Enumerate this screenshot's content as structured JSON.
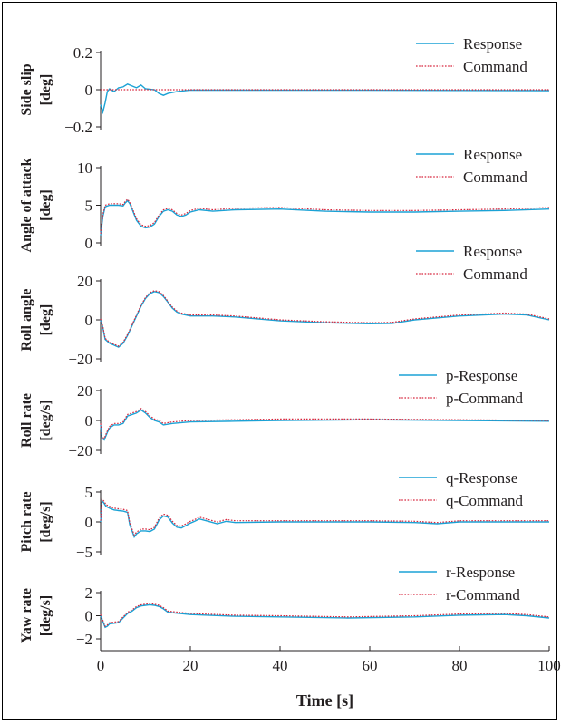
{
  "colors": {
    "response": "#1ba2d5",
    "command": "#d7263d",
    "axis": "#231f20"
  },
  "chart_data": [
    {
      "type": "line",
      "ylabel": [
        "Side slip",
        "[deg]"
      ],
      "ylim": [
        -0.2,
        0.2
      ],
      "yticks": [
        0.2,
        0,
        -0.2
      ],
      "yticklabels": [
        "0.2",
        "0",
        "−0.2"
      ],
      "legend": [
        "Response",
        "Command"
      ],
      "series": [
        {
          "name": "Response",
          "x": [
            0,
            0.5,
            1,
            1.5,
            2,
            3,
            4,
            5,
            6,
            7,
            8,
            9,
            10,
            12,
            13,
            14,
            15,
            17,
            20,
            40,
            60,
            80,
            100
          ],
          "y": [
            -0.08,
            -0.12,
            -0.07,
            -0.01,
            0.005,
            -0.01,
            0.01,
            0.015,
            0.03,
            0.02,
            0.01,
            0.025,
            0.005,
            0.0,
            -0.02,
            -0.03,
            -0.02,
            -0.01,
            -0.002,
            -0.003,
            -0.003,
            -0.004,
            -0.005
          ]
        },
        {
          "name": "Command",
          "x": [
            0,
            100
          ],
          "y": [
            0,
            0
          ]
        }
      ]
    },
    {
      "type": "line",
      "ylabel": [
        "Angle of attack",
        "[deg]"
      ],
      "ylim": [
        0,
        10
      ],
      "yticks": [
        10,
        5,
        0
      ],
      "yticklabels": [
        "10",
        "5",
        "0"
      ],
      "legend": [
        "Response",
        "Command"
      ],
      "series": [
        {
          "name": "Response",
          "x": [
            0,
            0.5,
            1,
            2,
            3,
            4,
            5,
            5.5,
            6,
            6.5,
            7,
            8,
            9,
            10,
            11,
            12,
            13,
            14,
            15,
            16,
            17,
            18,
            19,
            20,
            22,
            25,
            30,
            40,
            50,
            60,
            70,
            80,
            90,
            100
          ],
          "y": [
            1.0,
            3.5,
            4.8,
            5.0,
            5.0,
            5.0,
            4.9,
            5.3,
            5.6,
            5.2,
            4.5,
            3.0,
            2.2,
            2.0,
            2.1,
            2.5,
            3.5,
            4.2,
            4.4,
            4.2,
            3.7,
            3.5,
            3.7,
            4.1,
            4.4,
            4.2,
            4.4,
            4.5,
            4.2,
            4.1,
            4.1,
            4.2,
            4.3,
            4.5
          ]
        },
        {
          "name": "Command",
          "x": [
            0,
            0.5,
            1,
            2,
            3,
            4,
            5,
            5.5,
            6,
            6.5,
            7,
            8,
            9,
            10,
            11,
            12,
            13,
            14,
            15,
            16,
            17,
            18,
            19,
            20,
            22,
            25,
            30,
            40,
            50,
            60,
            70,
            80,
            90,
            100
          ],
          "y": [
            1.2,
            3.8,
            5.0,
            5.2,
            5.2,
            5.2,
            5.1,
            5.5,
            5.8,
            5.4,
            4.7,
            3.2,
            2.4,
            2.2,
            2.3,
            2.7,
            3.7,
            4.4,
            4.6,
            4.4,
            3.9,
            3.7,
            3.9,
            4.3,
            4.6,
            4.4,
            4.6,
            4.7,
            4.4,
            4.3,
            4.3,
            4.4,
            4.5,
            4.7
          ]
        }
      ]
    },
    {
      "type": "line",
      "ylabel": [
        "Roll angle",
        "[deg]"
      ],
      "ylim": [
        -20,
        20
      ],
      "yticks": [
        20,
        0,
        -20
      ],
      "yticklabels": [
        "20",
        "0",
        "−20"
      ],
      "legend": [
        "Response",
        "Command"
      ],
      "series": [
        {
          "name": "Response",
          "x": [
            0,
            0.5,
            1,
            2,
            3,
            4,
            5,
            6,
            7,
            8,
            9,
            10,
            11,
            12,
            13,
            14,
            15,
            16,
            17,
            18,
            20,
            25,
            30,
            40,
            50,
            60,
            65,
            70,
            80,
            90,
            95,
            100
          ],
          "y": [
            0,
            -4,
            -10,
            -12,
            -13,
            -14,
            -12,
            -8,
            -3,
            2,
            7,
            11,
            13.5,
            14.5,
            14,
            12,
            9,
            6,
            4,
            3,
            2,
            2,
            1.5,
            -0.5,
            -1.5,
            -2,
            -1.8,
            0,
            2,
            3,
            2.5,
            0
          ]
        },
        {
          "name": "Command",
          "x": [
            0,
            0.5,
            1,
            2,
            3,
            4,
            5,
            6,
            7,
            8,
            9,
            10,
            11,
            12,
            13,
            14,
            15,
            16,
            17,
            18,
            20,
            25,
            30,
            40,
            50,
            60,
            65,
            70,
            80,
            90,
            95,
            100
          ],
          "y": [
            0.5,
            -3.5,
            -9.5,
            -11.5,
            -12.5,
            -13.5,
            -11.5,
            -7.5,
            -2.5,
            2.5,
            7.5,
            11.5,
            14,
            15,
            14.5,
            12.5,
            9.5,
            6.5,
            4.5,
            3.5,
            2.5,
            2.5,
            2,
            0,
            -1,
            -1.5,
            -1.3,
            0.5,
            2.5,
            3.5,
            3,
            0.5
          ]
        }
      ]
    },
    {
      "type": "line",
      "ylabel": [
        "Roll rate",
        "[deg/s]"
      ],
      "ylim": [
        -20,
        20
      ],
      "yticks": [
        20,
        0,
        -20
      ],
      "yticklabels": [
        "20",
        "0",
        "−20"
      ],
      "legend": [
        "p-Response",
        "p-Command"
      ],
      "legend_prefix": "p",
      "series": [
        {
          "name": "p-Response",
          "x": [
            0,
            0.3,
            0.8,
            1.5,
            2,
            2.5,
            3,
            4,
            5,
            6,
            7,
            8,
            9,
            10,
            11,
            12,
            13,
            14,
            16,
            20,
            30,
            40,
            60,
            80,
            100
          ],
          "y": [
            -3,
            -12,
            -13,
            -8,
            -5,
            -4,
            -3,
            -3,
            -2,
            3,
            4,
            5,
            7,
            5,
            2,
            0,
            -1,
            -3,
            -2,
            -1,
            -0.5,
            0,
            0.5,
            0,
            -0.5
          ]
        },
        {
          "name": "p-Command",
          "x": [
            0,
            0.3,
            0.8,
            1.5,
            2,
            2.5,
            3,
            4,
            5,
            6,
            7,
            8,
            9,
            10,
            11,
            12,
            13,
            14,
            16,
            20,
            30,
            40,
            60,
            80,
            100
          ],
          "y": [
            -2,
            -11,
            -12,
            -7,
            -4,
            -3,
            -2,
            -2,
            -1,
            4,
            5,
            6,
            8,
            6,
            3,
            1,
            0,
            -2,
            -1,
            0,
            0.5,
            1,
            1,
            0.5,
            0
          ]
        }
      ]
    },
    {
      "type": "line",
      "ylabel": [
        "Pitch rate",
        "[deg/s]"
      ],
      "ylim": [
        -5,
        5
      ],
      "yticks": [
        5,
        0,
        -5
      ],
      "yticklabels": [
        "5",
        "0",
        "−5"
      ],
      "legend": [
        "q-Response",
        "q-Command"
      ],
      "legend_prefix": "q",
      "series": [
        {
          "name": "q-Response",
          "x": [
            0,
            0.3,
            0.7,
            1.2,
            2,
            3,
            4,
            5,
            6,
            6.5,
            7,
            7.5,
            8,
            9,
            10,
            11,
            12,
            13,
            14,
            15,
            16,
            17,
            18,
            19,
            20,
            21,
            22,
            24,
            26,
            28,
            30,
            40,
            50,
            60,
            70,
            75,
            80,
            90,
            100
          ],
          "y": [
            0,
            3.5,
            3.2,
            2.6,
            2.3,
            2.0,
            1.9,
            1.8,
            1.6,
            -0.5,
            -1.5,
            -2.5,
            -2.0,
            -1.5,
            -1.5,
            -1.6,
            -1.2,
            0.3,
            1.0,
            0.8,
            -0.2,
            -0.9,
            -1.0,
            -0.6,
            -0.2,
            0.1,
            0.5,
            0.1,
            -0.3,
            0.1,
            -0.1,
            0,
            0,
            0,
            -0.1,
            -0.3,
            0,
            0,
            0
          ]
        },
        {
          "name": "q-Command",
          "x": [
            0,
            0.3,
            0.7,
            1.2,
            2,
            3,
            4,
            5,
            6,
            6.5,
            7,
            7.5,
            8,
            9,
            10,
            11,
            12,
            13,
            14,
            15,
            16,
            17,
            18,
            19,
            20,
            21,
            22,
            24,
            26,
            28,
            30,
            40,
            50,
            60,
            70,
            75,
            80,
            90,
            100
          ],
          "y": [
            0.2,
            3.8,
            3.5,
            2.9,
            2.6,
            2.3,
            2.2,
            2.1,
            1.9,
            -0.2,
            -1.2,
            -2.2,
            -1.7,
            -1.2,
            -1.2,
            -1.3,
            -0.9,
            0.6,
            1.3,
            1.1,
            0.1,
            -0.6,
            -0.7,
            -0.3,
            0.1,
            0.4,
            0.8,
            0.4,
            0,
            0.4,
            0.2,
            0.2,
            0.2,
            0.2,
            0.1,
            -0.1,
            0.2,
            0.2,
            0.2
          ]
        }
      ]
    },
    {
      "type": "line",
      "ylabel": [
        "Yaw rate",
        "[deg/s]"
      ],
      "ylim": [
        -2,
        2
      ],
      "yticks": [
        2,
        0,
        -2
      ],
      "yticklabels": [
        "2",
        "0",
        "−2"
      ],
      "legend": [
        "r-Response",
        "r-Command"
      ],
      "legend_prefix": "r",
      "xlabel": "Time [s]",
      "xticks": [
        0,
        20,
        40,
        60,
        80,
        100
      ],
      "series": [
        {
          "name": "r-Response",
          "x": [
            0,
            0.5,
            1,
            1.5,
            2,
            3,
            4,
            5,
            6,
            7,
            8,
            9,
            10,
            11,
            12,
            13,
            14,
            15,
            20,
            30,
            40,
            55,
            70,
            80,
            90,
            95,
            100
          ],
          "y": [
            0,
            -0.5,
            -1.0,
            -0.9,
            -0.7,
            -0.65,
            -0.6,
            -0.2,
            0.2,
            0.4,
            0.7,
            0.85,
            0.9,
            0.95,
            0.9,
            0.8,
            0.6,
            0.3,
            0.1,
            -0.05,
            -0.1,
            -0.2,
            -0.1,
            0.05,
            0.1,
            0.0,
            -0.2
          ]
        },
        {
          "name": "r-Command",
          "x": [
            0,
            0.5,
            1,
            1.5,
            2,
            3,
            4,
            5,
            6,
            7,
            8,
            9,
            10,
            11,
            12,
            13,
            14,
            15,
            20,
            30,
            40,
            55,
            70,
            80,
            90,
            95,
            100
          ],
          "y": [
            0.1,
            -0.4,
            -0.9,
            -0.8,
            -0.6,
            -0.55,
            -0.5,
            -0.1,
            0.3,
            0.5,
            0.8,
            0.95,
            1.0,
            1.05,
            1.0,
            0.9,
            0.7,
            0.4,
            0.2,
            0.05,
            0,
            -0.1,
            0,
            0.15,
            0.2,
            0.1,
            -0.1
          ]
        }
      ]
    }
  ]
}
